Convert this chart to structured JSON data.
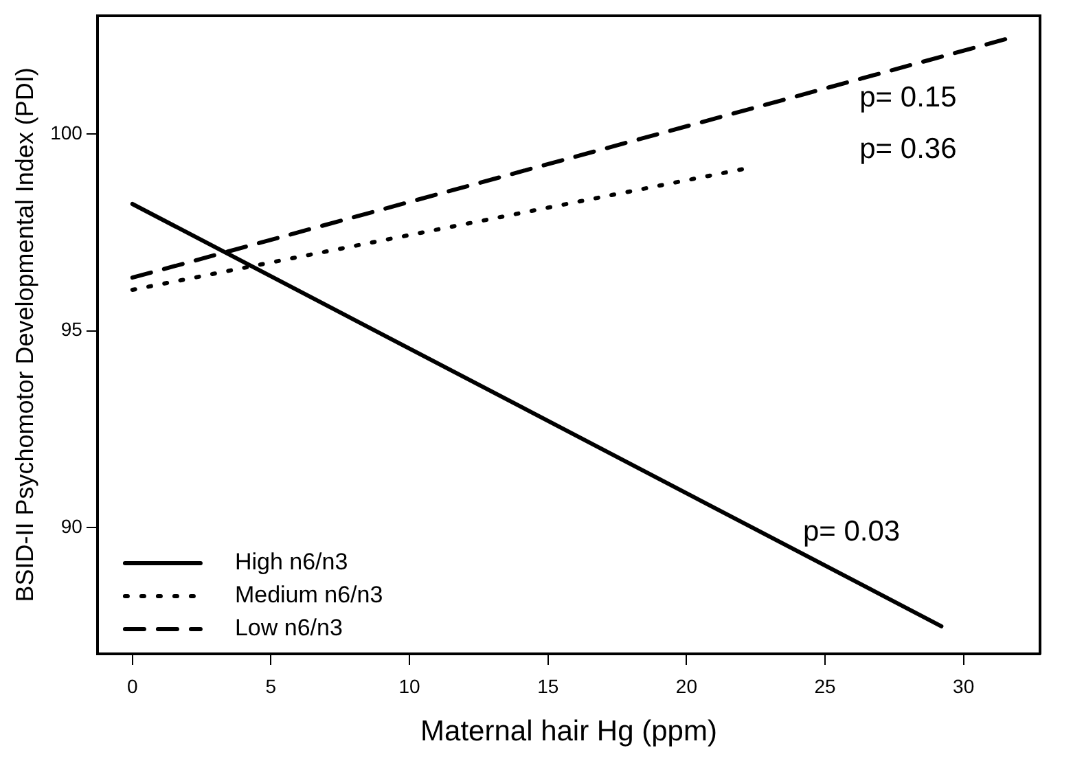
{
  "chart_data": {
    "type": "line",
    "xlabel": "Maternal hair Hg (ppm)",
    "ylabel": "BSID-II Psychomotor Developmental Index (PDI)",
    "series": [
      {
        "name": "High n6/n3",
        "color": "#000000",
        "line_style": "solid",
        "x": [
          0,
          29.2
        ],
        "values": [
          98.22,
          87.5
        ]
      },
      {
        "name": "Medium n6/n3",
        "color": "#000000",
        "line_style": "dotted",
        "x": [
          0,
          22
        ],
        "values": [
          96.04,
          99.1
        ]
      },
      {
        "name": "Low n6/n3",
        "color": "#000000",
        "line_style": "dashed",
        "x": [
          0,
          31.5
        ],
        "values": [
          96.35,
          102.4
        ]
      }
    ],
    "xlim": [
      -1.26,
      32.76
    ],
    "ylim": [
      86.8,
      103.0
    ],
    "xticks": [
      0,
      5,
      10,
      15,
      20,
      25,
      30
    ],
    "yticks": [
      90,
      95,
      100
    ],
    "annotations": [
      "p= 0.15",
      "p= 0.36",
      "p= 0.03"
    ],
    "grid": false,
    "legend": "bottom left",
    "marker": "none"
  }
}
